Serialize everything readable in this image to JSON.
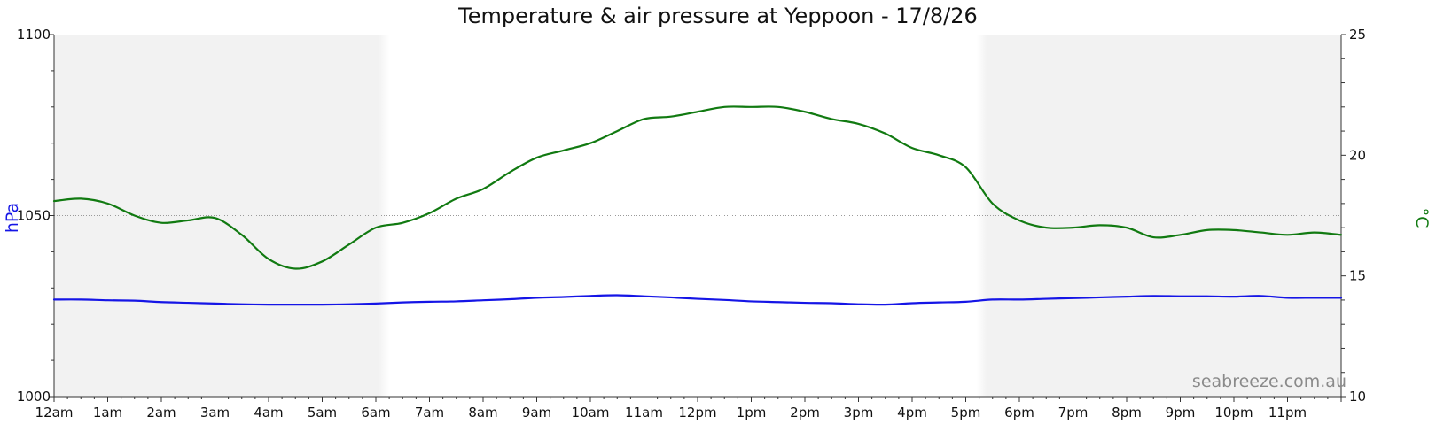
{
  "chart_data": {
    "type": "line",
    "title": "Temperature & air pressure at Yeppoon - 17/8/26",
    "watermark": "seabreeze.com.au",
    "x_unit": "hour",
    "x_ticks": [
      {
        "value": 0,
        "label": "12am"
      },
      {
        "value": 1,
        "label": "1am"
      },
      {
        "value": 2,
        "label": "2am"
      },
      {
        "value": 3,
        "label": "3am"
      },
      {
        "value": 4,
        "label": "4am"
      },
      {
        "value": 5,
        "label": "5am"
      },
      {
        "value": 6,
        "label": "6am"
      },
      {
        "value": 7,
        "label": "7am"
      },
      {
        "value": 8,
        "label": "8am"
      },
      {
        "value": 9,
        "label": "9am"
      },
      {
        "value": 10,
        "label": "10am"
      },
      {
        "value": 11,
        "label": "11am"
      },
      {
        "value": 12,
        "label": "12pm"
      },
      {
        "value": 13,
        "label": "1pm"
      },
      {
        "value": 14,
        "label": "2pm"
      },
      {
        "value": 15,
        "label": "3pm"
      },
      {
        "value": 16,
        "label": "4pm"
      },
      {
        "value": 17,
        "label": "5pm"
      },
      {
        "value": 18,
        "label": "6pm"
      },
      {
        "value": 19,
        "label": "7pm"
      },
      {
        "value": 20,
        "label": "8pm"
      },
      {
        "value": 21,
        "label": "9pm"
      },
      {
        "value": 22,
        "label": "10pm"
      },
      {
        "value": 23,
        "label": "11pm"
      }
    ],
    "xlim": [
      0,
      24
    ],
    "night_shading": [
      [
        0,
        6.25
      ],
      [
        17.2,
        24
      ]
    ],
    "left_axis": {
      "label": "hPa",
      "ylim": [
        1000,
        1100
      ],
      "ticks": [
        1000,
        1050,
        1100
      ],
      "color": "#1515e6"
    },
    "right_axis": {
      "label": "°C",
      "ylim": [
        10,
        25
      ],
      "ticks": [
        10,
        15,
        20,
        25
      ],
      "color": "#117a11"
    },
    "gridlines": [
      {
        "axis": "left",
        "value": 1050
      }
    ],
    "series": [
      {
        "axis": "left",
        "color": "#1515e6",
        "x": [
          0,
          0.5,
          1,
          1.5,
          2,
          2.5,
          3,
          3.5,
          4,
          4.5,
          5,
          5.5,
          6,
          6.5,
          7,
          7.5,
          8,
          8.5,
          9,
          9.5,
          10,
          10.5,
          11,
          11.5,
          12,
          12.5,
          13,
          13.5,
          14,
          14.5,
          15,
          15.5,
          16,
          16.5,
          17,
          17.5,
          18,
          18.5,
          19,
          19.5,
          20,
          20.5,
          21,
          21.5,
          22,
          22.5,
          23,
          23.5,
          24
        ],
        "values": [
          1026.8,
          1026.8,
          1026.6,
          1026.5,
          1026.1,
          1025.9,
          1025.7,
          1025.5,
          1025.4,
          1025.4,
          1025.4,
          1025.5,
          1025.7,
          1026.0,
          1026.2,
          1026.3,
          1026.6,
          1026.9,
          1027.3,
          1027.5,
          1027.8,
          1028.0,
          1027.7,
          1027.4,
          1027.0,
          1026.7,
          1026.3,
          1026.1,
          1025.9,
          1025.8,
          1025.5,
          1025.4,
          1025.8,
          1026.0,
          1026.2,
          1026.8,
          1026.8,
          1027.0,
          1027.2,
          1027.4,
          1027.6,
          1027.8,
          1027.7,
          1027.7,
          1027.6,
          1027.8,
          1027.3,
          1027.3,
          1027.3
        ]
      },
      {
        "axis": "right",
        "color": "#117a11",
        "x": [
          0,
          0.5,
          1,
          1.5,
          2,
          2.5,
          3,
          3.5,
          4,
          4.5,
          5,
          5.5,
          6,
          6.5,
          7,
          7.5,
          8,
          8.5,
          9,
          9.5,
          10,
          10.5,
          11,
          11.5,
          12,
          12.5,
          13,
          13.5,
          14,
          14.5,
          15,
          15.5,
          16,
          16.5,
          17,
          17.5,
          18,
          18.5,
          19,
          19.5,
          20,
          20.5,
          21,
          21.5,
          22,
          22.5,
          23,
          23.5,
          24
        ],
        "values": [
          18.1,
          18.2,
          18.0,
          17.5,
          17.2,
          17.3,
          17.4,
          16.7,
          15.7,
          15.3,
          15.6,
          16.3,
          17.0,
          17.2,
          17.6,
          18.2,
          18.6,
          19.3,
          19.9,
          20.2,
          20.5,
          21.0,
          21.5,
          21.6,
          21.8,
          22.0,
          22.0,
          22.0,
          21.8,
          21.5,
          21.3,
          20.9,
          20.3,
          20.0,
          19.5,
          18.0,
          17.3,
          17.0,
          17.0,
          17.1,
          17.0,
          16.6,
          16.7,
          16.9,
          16.9,
          16.8,
          16.7,
          16.8,
          16.7
        ]
      }
    ]
  }
}
